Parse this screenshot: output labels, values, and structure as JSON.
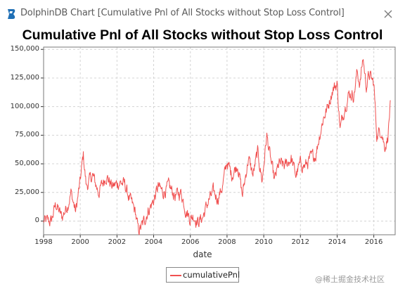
{
  "window": {
    "title": "DolphinDB Chart [Cumulative Pnl of All Stocks without Stop Loss Control]",
    "icon": "dolphindb-logo-icon",
    "close_icon": "close-icon"
  },
  "watermark": "@稀土掘金技术社区",
  "colors": {
    "series": "#f05050",
    "grid": "#d4d4d4",
    "axis": "#333333"
  },
  "chart_data": {
    "type": "line",
    "title": "Cumulative Pnl of All Stocks without Stop Loss Control",
    "xlabel": "date",
    "ylabel": "",
    "xlim": [
      "1998-01-01",
      "2017-03-01"
    ],
    "ylim": [
      -12000,
      152000
    ],
    "x_ticks": [
      "1998",
      "2000",
      "2002",
      "2004",
      "2006",
      "2008",
      "2010",
      "2012",
      "2014",
      "2016"
    ],
    "y_ticks": [
      "0",
      "25,000",
      "50,000",
      "75,000",
      "100,000",
      "125,000",
      "150,000"
    ],
    "grid": true,
    "legend_position": "bottom-center",
    "series": [
      {
        "name": "cumulativePnl",
        "color": "#f05050",
        "x": [
          "1998-01-01",
          "1998-06-01",
          "1998-09-01",
          "1999-01-01",
          "1999-05-01",
          "1999-07-01",
          "1999-10-01",
          "2000-01-01",
          "2000-03-01",
          "2000-05-01",
          "2000-09-01",
          "2001-01-01",
          "2001-06-01",
          "2001-10-01",
          "2002-03-01",
          "2002-06-01",
          "2002-09-01",
          "2003-01-01",
          "2003-03-01",
          "2003-06-01",
          "2003-09-01",
          "2004-01-01",
          "2004-04-01",
          "2004-07-01",
          "2004-11-01",
          "2005-03-01",
          "2005-07-01",
          "2005-10-01",
          "2006-01-01",
          "2006-03-01",
          "2006-06-01",
          "2006-09-01",
          "2007-01-01",
          "2007-04-01",
          "2007-07-01",
          "2007-10-01",
          "2008-01-01",
          "2008-04-01",
          "2008-08-01",
          "2008-11-01",
          "2009-03-01",
          "2009-06-01",
          "2009-09-01",
          "2009-12-01",
          "2010-03-01",
          "2010-06-01",
          "2010-08-01",
          "2010-11-01",
          "2011-03-01",
          "2011-07-01",
          "2011-10-01",
          "2012-01-01",
          "2012-04-01",
          "2012-08-01",
          "2012-11-01",
          "2013-01-01",
          "2013-04-01",
          "2013-07-01",
          "2013-10-01",
          "2014-01-01",
          "2014-03-01",
          "2014-06-01",
          "2014-09-01",
          "2014-12-01",
          "2015-02-01",
          "2015-04-01",
          "2015-06-01",
          "2015-08-01",
          "2015-10-01",
          "2016-01-01",
          "2016-03-01",
          "2016-06-01",
          "2016-08-01",
          "2016-10-01",
          "2016-12-01"
        ],
        "values": [
          0,
          -500,
          15000,
          3000,
          15000,
          25000,
          8000,
          35000,
          58000,
          30000,
          40000,
          25000,
          40000,
          30000,
          34000,
          32000,
          20000,
          8000,
          -9000,
          -3000,
          8000,
          18000,
          30000,
          25000,
          30000,
          22000,
          25000,
          10000,
          2000,
          5000,
          -1000,
          3000,
          18000,
          25000,
          20000,
          30000,
          52000,
          40000,
          50000,
          22000,
          55000,
          40000,
          60000,
          35000,
          75000,
          50000,
          35000,
          50000,
          48000,
          55000,
          40000,
          50000,
          48000,
          55000,
          58000,
          72000,
          90000,
          100000,
          115000,
          120000,
          80000,
          100000,
          112000,
          110000,
          130000,
          120000,
          143000,
          118000,
          128000,
          120000,
          75000,
          80000,
          65000,
          72000,
          105000
        ]
      }
    ]
  }
}
